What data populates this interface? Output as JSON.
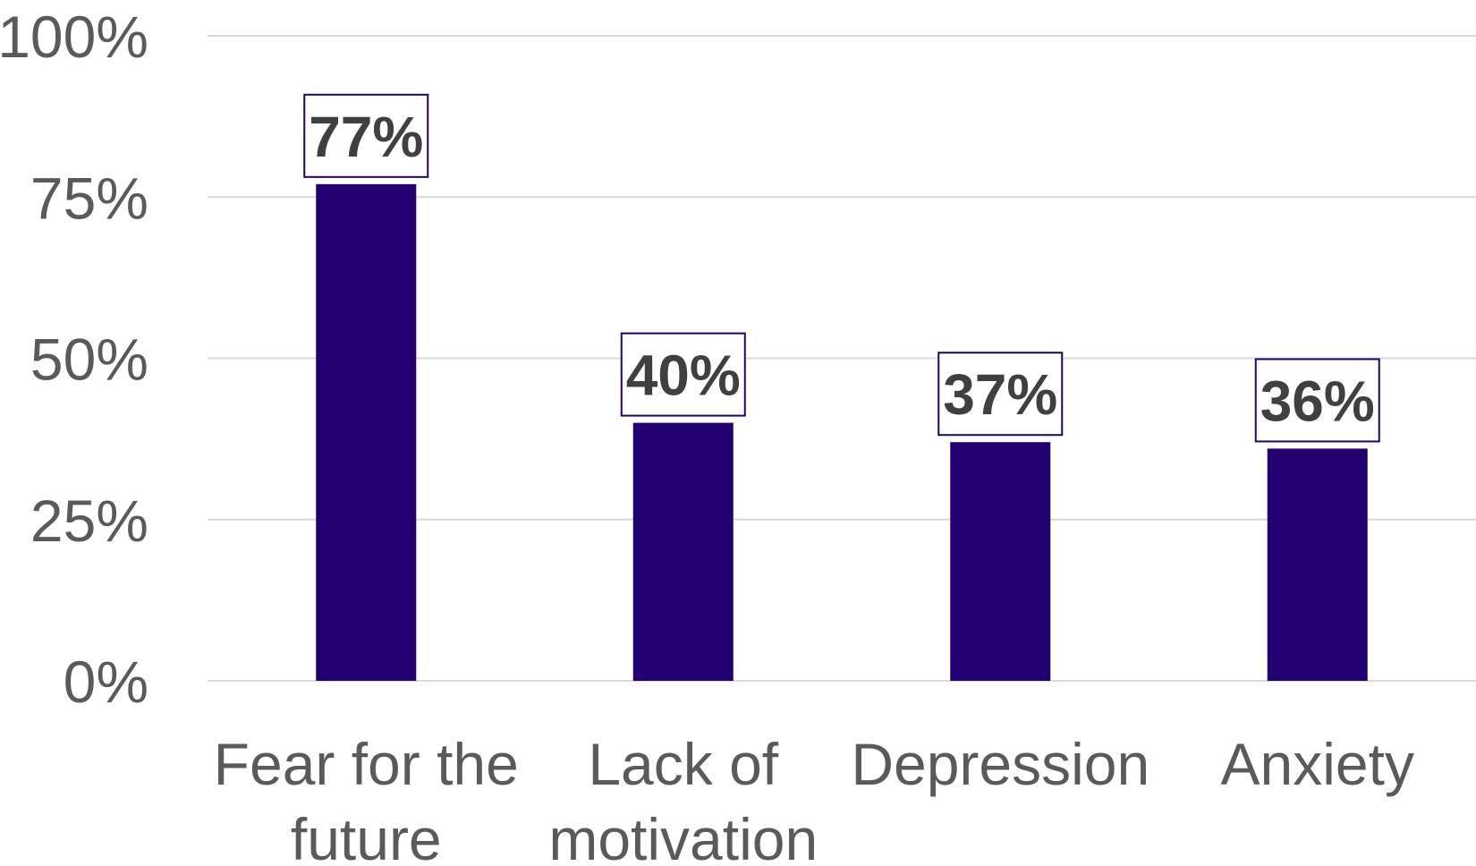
{
  "chart_data": {
    "type": "bar",
    "title": "",
    "xlabel": "",
    "ylabel": "",
    "categories": [
      [
        "Fear for the",
        "future"
      ],
      [
        "Lack of",
        "motivation"
      ],
      [
        "Depression"
      ],
      [
        "Anxiety"
      ]
    ],
    "values": [
      77,
      40,
      37,
      36
    ],
    "data_labels": [
      "77%",
      "40%",
      "37%",
      "36%"
    ],
    "ylim": [
      0,
      100
    ],
    "yticks": [
      0,
      25,
      50,
      75,
      100
    ],
    "ytick_labels": [
      "0%",
      "25%",
      "50%",
      "75%",
      "100%"
    ],
    "grid": true,
    "legend": "none",
    "colors": {
      "bar": "#230071",
      "label_border": "#230071",
      "grid": "#d9d9d9",
      "text": "#5a5a5a"
    }
  }
}
